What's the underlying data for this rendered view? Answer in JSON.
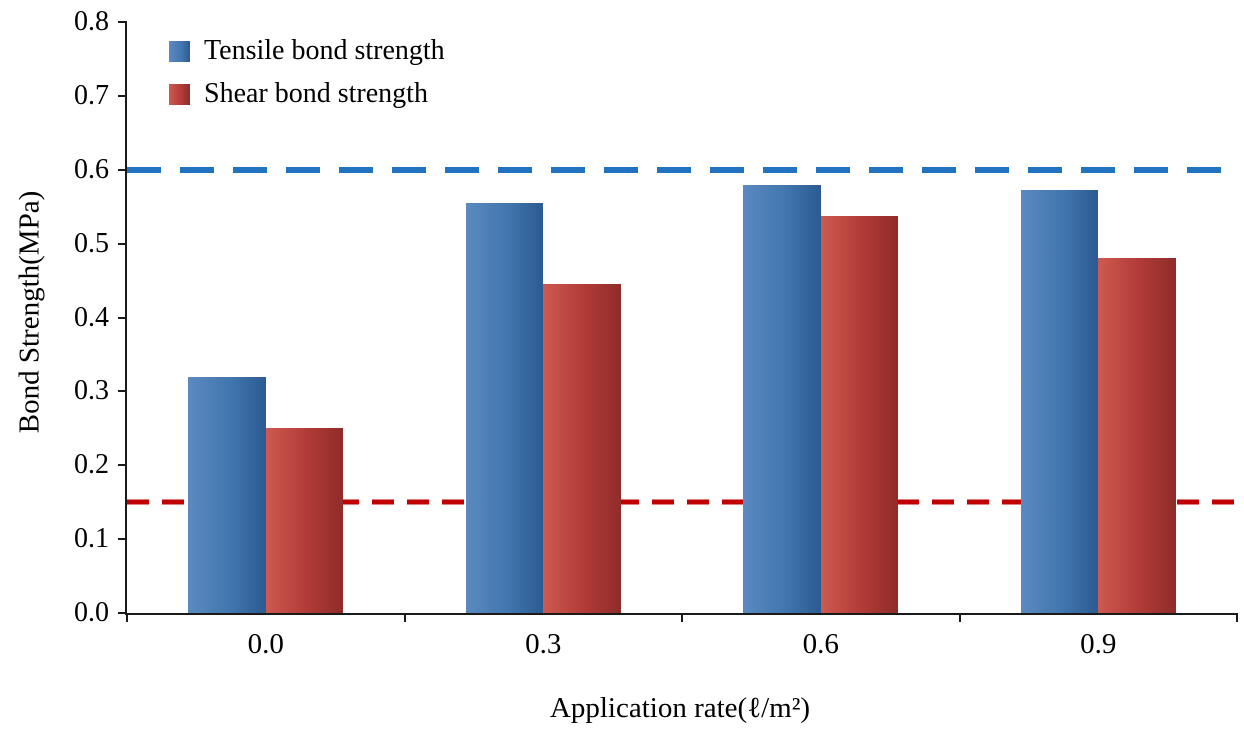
{
  "chart_data": {
    "type": "bar",
    "title": "",
    "xlabel": "Application rate(ℓ/m²)",
    "ylabel": "Bond Strength(MPa)",
    "categories": [
      "0.0",
      "0.3",
      "0.6",
      "0.9"
    ],
    "series": [
      {
        "key": "tensile",
        "name": "Tensile bond strength",
        "color": "#4176ae",
        "color_light": "#5b89c0",
        "color_dark": "#2c5a92",
        "values": [
          0.32,
          0.555,
          0.58,
          0.572
        ]
      },
      {
        "key": "shear",
        "name": "Shear bond strength",
        "color": "#b03a36",
        "color_light": "#cd5a50",
        "color_dark": "#8f2c29",
        "values": [
          0.25,
          0.445,
          0.537,
          0.48
        ]
      }
    ],
    "ylim": [
      0.0,
      0.8
    ],
    "yticks": [
      0.0,
      0.1,
      0.2,
      0.3,
      0.4,
      0.5,
      0.6,
      0.7,
      0.8
    ],
    "reference_lines": [
      {
        "key": "tensile-limit",
        "value": 0.6,
        "color": "#2173c2",
        "style": "dashed"
      },
      {
        "key": "shear-limit",
        "value": 0.15,
        "color": "#c00000",
        "style": "dashed"
      }
    ],
    "grid": false,
    "legend_position": "top-left"
  }
}
